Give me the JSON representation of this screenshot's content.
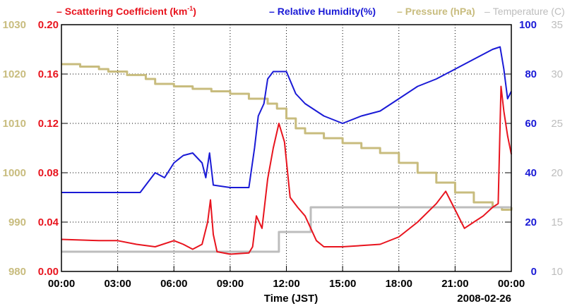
{
  "chart_data": {
    "type": "line",
    "legend": {
      "position": "top",
      "items": [
        {
          "dash": "–",
          "label": "Scattering Coefficient (km",
          "sup": "-1",
          "suffix": ")",
          "color": "#e8141e"
        },
        {
          "dash": "–",
          "label": "Relative Humidity(%)",
          "color": "#1a1ad6"
        },
        {
          "dash": "–",
          "label": "Pressure (hPa)",
          "color": "#c8bc7e"
        },
        {
          "dash": "–",
          "label": "Temperature (C)",
          "color": "#bdbdbd"
        }
      ]
    },
    "xlabel": "Time (JST)",
    "date_label": "2008-02-26",
    "x_ticks": [
      "00:00",
      "03:00",
      "06:00",
      "09:00",
      "12:00",
      "15:00",
      "18:00",
      "21:00",
      "00:00"
    ],
    "xlim": [
      0,
      24
    ],
    "axes": {
      "pressure": {
        "range": [
          980,
          1030
        ],
        "ticks": [
          "980",
          "990",
          "1000",
          "1010",
          "1020",
          "1030"
        ],
        "color": "#c8bc7e"
      },
      "scattering": {
        "range": [
          0,
          0.2
        ],
        "ticks": [
          "0.00",
          "0.04",
          "0.08",
          "0.12",
          "0.16",
          "0.20"
        ],
        "color": "#e8141e"
      },
      "humidity": {
        "range": [
          0,
          100
        ],
        "ticks": [
          "0",
          "20",
          "40",
          "60",
          "80",
          "100"
        ],
        "color": "#1a1ad6"
      },
      "temperature": {
        "range": [
          10,
          35
        ],
        "ticks": [
          "10",
          "15",
          "20",
          "25",
          "30",
          "35"
        ],
        "color": "#bdbdbd"
      }
    },
    "series": [
      {
        "name": "Pressure (hPa)",
        "axis": "pressure",
        "color": "#c8bc7e",
        "style": "step",
        "points": [
          [
            0,
            1022
          ],
          [
            1,
            1021.5
          ],
          [
            2,
            1021
          ],
          [
            2.5,
            1020.5
          ],
          [
            3.5,
            1019.8
          ],
          [
            4.5,
            1019
          ],
          [
            5,
            1018
          ],
          [
            6,
            1017.5
          ],
          [
            7,
            1017
          ],
          [
            8,
            1016.5
          ],
          [
            9,
            1016
          ],
          [
            10,
            1015
          ],
          [
            11,
            1014
          ],
          [
            11.5,
            1013
          ],
          [
            12,
            1011
          ],
          [
            12.5,
            1009
          ],
          [
            13,
            1008
          ],
          [
            14,
            1007
          ],
          [
            15,
            1006
          ],
          [
            16,
            1005
          ],
          [
            17,
            1004
          ],
          [
            18,
            1002
          ],
          [
            19,
            1000
          ],
          [
            20,
            998
          ],
          [
            21,
            996
          ],
          [
            22,
            994
          ],
          [
            23,
            993
          ],
          [
            23.5,
            992.5
          ],
          [
            24,
            993
          ]
        ]
      },
      {
        "name": "Temperature (C)",
        "axis": "temperature",
        "color": "#bdbdbd",
        "style": "step",
        "points": [
          [
            0,
            12
          ],
          [
            11.5,
            12
          ],
          [
            11.6,
            14
          ],
          [
            13.2,
            14
          ],
          [
            13.3,
            16.5
          ],
          [
            24,
            16.5
          ]
        ]
      },
      {
        "name": "Relative Humidity(%)",
        "axis": "humidity",
        "color": "#1a1ad6",
        "style": "line",
        "points": [
          [
            0,
            32
          ],
          [
            4.2,
            32
          ],
          [
            4.5,
            35
          ],
          [
            5,
            40
          ],
          [
            5.5,
            38
          ],
          [
            6,
            44
          ],
          [
            6.5,
            47
          ],
          [
            7,
            48
          ],
          [
            7.5,
            44
          ],
          [
            7.7,
            38
          ],
          [
            7.9,
            48
          ],
          [
            8.1,
            35
          ],
          [
            9,
            34
          ],
          [
            10,
            34
          ],
          [
            10.3,
            50
          ],
          [
            10.5,
            63
          ],
          [
            10.8,
            68
          ],
          [
            11,
            78
          ],
          [
            11.3,
            81
          ],
          [
            12,
            81
          ],
          [
            12.5,
            72
          ],
          [
            13,
            68
          ],
          [
            14,
            63
          ],
          [
            15,
            60
          ],
          [
            16,
            63
          ],
          [
            17,
            65
          ],
          [
            18,
            70
          ],
          [
            19,
            75
          ],
          [
            20,
            78
          ],
          [
            21,
            82
          ],
          [
            22,
            86
          ],
          [
            23,
            90
          ],
          [
            23.4,
            91
          ],
          [
            23.6,
            82
          ],
          [
            23.8,
            70
          ],
          [
            24,
            73
          ]
        ]
      },
      {
        "name": "Scattering Coefficient (km-1)",
        "axis": "scattering",
        "color": "#e8141e",
        "style": "line",
        "points": [
          [
            0,
            0.026
          ],
          [
            2,
            0.025
          ],
          [
            3,
            0.025
          ],
          [
            4,
            0.022
          ],
          [
            5,
            0.02
          ],
          [
            6,
            0.025
          ],
          [
            6.5,
            0.022
          ],
          [
            7,
            0.018
          ],
          [
            7.5,
            0.022
          ],
          [
            7.8,
            0.04
          ],
          [
            7.95,
            0.058
          ],
          [
            8.1,
            0.03
          ],
          [
            8.3,
            0.016
          ],
          [
            9,
            0.014
          ],
          [
            10,
            0.015
          ],
          [
            10.2,
            0.02
          ],
          [
            10.4,
            0.045
          ],
          [
            10.7,
            0.035
          ],
          [
            11,
            0.075
          ],
          [
            11.3,
            0.1
          ],
          [
            11.6,
            0.12
          ],
          [
            11.9,
            0.105
          ],
          [
            12.2,
            0.06
          ],
          [
            12.6,
            0.052
          ],
          [
            13,
            0.045
          ],
          [
            13.3,
            0.035
          ],
          [
            13.6,
            0.025
          ],
          [
            14,
            0.02
          ],
          [
            15,
            0.02
          ],
          [
            16,
            0.021
          ],
          [
            17,
            0.022
          ],
          [
            18,
            0.028
          ],
          [
            19,
            0.04
          ],
          [
            20,
            0.055
          ],
          [
            20.5,
            0.065
          ],
          [
            21,
            0.05
          ],
          [
            21.5,
            0.035
          ],
          [
            22,
            0.04
          ],
          [
            22.5,
            0.045
          ],
          [
            23,
            0.052
          ],
          [
            23.3,
            0.055
          ],
          [
            23.45,
            0.15
          ],
          [
            23.6,
            0.13
          ],
          [
            23.8,
            0.11
          ],
          [
            24,
            0.095
          ]
        ]
      }
    ]
  }
}
